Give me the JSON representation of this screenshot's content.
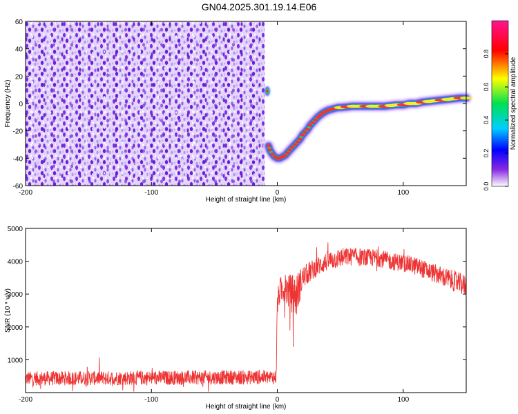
{
  "figure": {
    "title": "GN04.2025.301.19.14.E06"
  },
  "chart_data": [
    {
      "type": "heatmap",
      "xlabel": "Height of straight line (km)",
      "ylabel": "Frequency (Hz)",
      "xlim": [
        -200,
        150
      ],
      "ylim": [
        -60,
        60
      ],
      "xticks": [
        -200,
        -100,
        0,
        100
      ],
      "yticks": [
        -60,
        -40,
        -20,
        0,
        20,
        40,
        60
      ],
      "noise_region_x": [
        -200,
        -10
      ],
      "ridge": {
        "x": [
          -7,
          -6,
          -4,
          -2,
          0,
          2,
          4,
          6,
          8,
          10,
          12,
          14,
          16,
          18,
          20,
          22,
          24,
          26,
          28,
          30,
          32,
          34,
          36,
          38,
          40,
          42,
          44,
          46,
          48,
          50,
          55,
          60,
          65,
          70,
          75,
          80,
          85,
          90,
          95,
          100,
          105,
          110,
          115,
          120,
          125,
          130,
          135,
          140,
          145,
          150
        ],
        "y": [
          -31,
          -34,
          -37,
          -39,
          -40,
          -40,
          -39,
          -38,
          -36,
          -34,
          -32,
          -30,
          -28,
          -26,
          -23,
          -21,
          -19,
          -16,
          -14,
          -12,
          -10,
          -8.5,
          -7,
          -6,
          -5,
          -4.5,
          -4,
          -3.5,
          -3,
          -3,
          -2.5,
          -2,
          -2,
          -2,
          -2,
          -2,
          -2,
          -1.5,
          -1,
          -1,
          0,
          0,
          1,
          1.5,
          2,
          2.5,
          3,
          3.5,
          4,
          4
        ]
      },
      "blip": {
        "x": -8,
        "y": 9
      },
      "colorbar": {
        "label": "Normalized spectral amplitude",
        "range": [
          0,
          1
        ],
        "ticks": [
          "0.0",
          "0.2",
          "0.4",
          "0.6",
          "0.8"
        ],
        "colors": [
          "#ffffff",
          "#8a2be2",
          "#0000ff",
          "#00d0ff",
          "#00e050",
          "#ffff00",
          "#ff0000",
          "#ff1493"
        ]
      }
    },
    {
      "type": "line",
      "xlabel": "Height of straight line (km)",
      "ylabel": "SNR (10 * v/v)",
      "xlim": [
        -200,
        150
      ],
      "ylim": [
        0,
        5000
      ],
      "xticks": [
        -200,
        -100,
        0,
        100
      ],
      "yticks": [
        1000,
        2000,
        3000,
        4000,
        5000
      ],
      "color": "#ee3333",
      "envelope": {
        "x": [
          -200,
          -150,
          -100,
          -50,
          -1,
          0,
          2,
          5,
          10,
          15,
          20,
          30,
          40,
          50,
          60,
          70,
          80,
          90,
          100,
          110,
          120,
          130,
          140,
          150
        ],
        "mean": [
          430,
          440,
          450,
          460,
          470,
          2700,
          3100,
          3200,
          3050,
          2950,
          3500,
          3800,
          4000,
          4100,
          4150,
          4100,
          4100,
          4000,
          3950,
          3850,
          3700,
          3550,
          3400,
          3250
        ],
        "spread": [
          220,
          220,
          220,
          220,
          220,
          400,
          400,
          450,
          550,
          700,
          350,
          300,
          300,
          300,
          280,
          280,
          270,
          270,
          270,
          280,
          280,
          300,
          320,
          330
        ]
      }
    }
  ]
}
